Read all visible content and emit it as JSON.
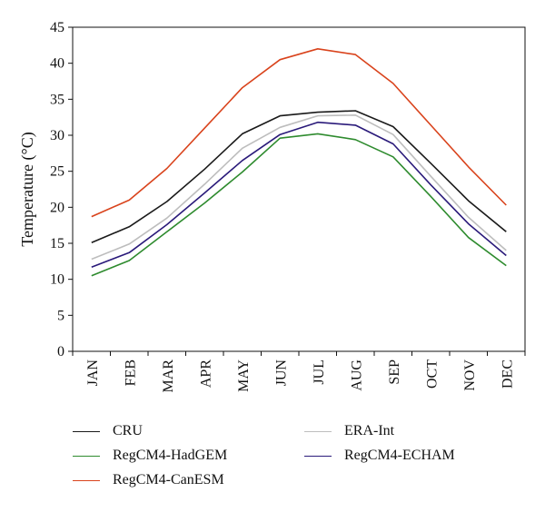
{
  "chart_data": {
    "type": "line",
    "title": "",
    "xlabel": "",
    "ylabel": "Temperature (°C)",
    "ylim": [
      0,
      45
    ],
    "yticks": [
      0,
      5,
      10,
      15,
      20,
      25,
      30,
      35,
      40,
      45
    ],
    "grid": false,
    "legend_placement": "bottom",
    "categories": [
      "JAN",
      "FEB",
      "MAR",
      "APR",
      "MAY",
      "JUN",
      "JUL",
      "AUG",
      "SEP",
      "OCT",
      "NOV",
      "DEC"
    ],
    "series": [
      {
        "name": "CRU",
        "color": "#1a1a1a",
        "values": [
          15.1,
          17.3,
          20.8,
          25.3,
          30.2,
          32.7,
          33.2,
          33.4,
          31.2,
          26.1,
          20.9,
          16.6
        ]
      },
      {
        "name": "ERA-Int",
        "color": "#bdbdbd",
        "values": [
          12.8,
          14.9,
          18.5,
          23.2,
          28.2,
          31.1,
          32.7,
          32.8,
          30.1,
          24.3,
          18.6,
          14.0
        ]
      },
      {
        "name": "RegCM4-HadGEM",
        "color": "#2e8b2e",
        "values": [
          10.5,
          12.6,
          16.6,
          20.6,
          24.9,
          29.6,
          30.2,
          29.4,
          27.0,
          21.5,
          15.8,
          11.9
        ]
      },
      {
        "name": "RegCM4-ECHAM",
        "color": "#2a1a7a",
        "values": [
          11.7,
          13.7,
          17.6,
          22.0,
          26.5,
          30.1,
          31.8,
          31.4,
          28.8,
          23.1,
          17.7,
          13.3
        ]
      },
      {
        "name": "RegCM4-CanESM",
        "color": "#d9431c",
        "values": [
          18.7,
          21.0,
          25.4,
          31.0,
          36.6,
          40.5,
          42.0,
          41.2,
          37.2,
          31.4,
          25.6,
          20.3
        ]
      }
    ]
  },
  "legend": {
    "items": [
      {
        "label": "CRU",
        "color": "#1a1a1a"
      },
      {
        "label": "ERA-Int",
        "color": "#bdbdbd"
      },
      {
        "label": "RegCM4-HadGEM",
        "color": "#2e8b2e"
      },
      {
        "label": "RegCM4-ECHAM",
        "color": "#2a1a7a"
      },
      {
        "label": "RegCM4-CanESM",
        "color": "#d9431c"
      }
    ]
  }
}
